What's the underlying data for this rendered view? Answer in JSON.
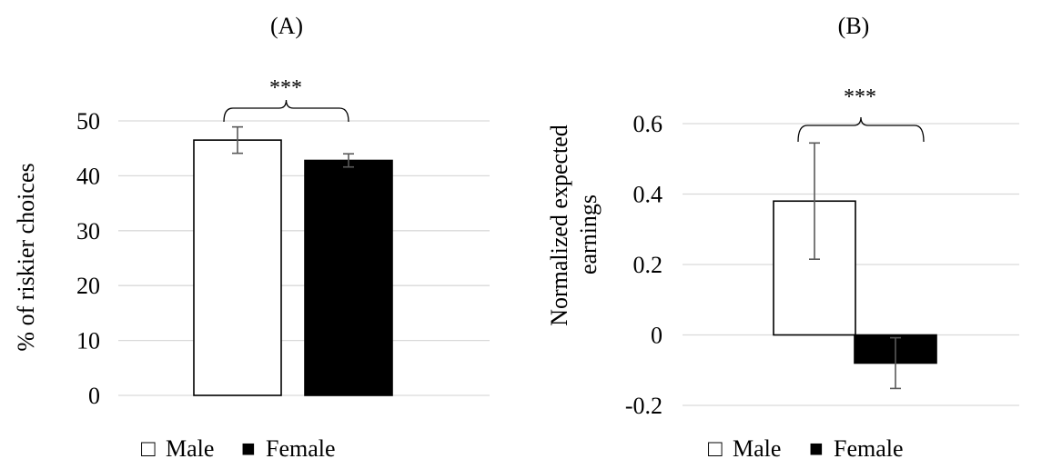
{
  "chart_data": [
    {
      "type": "bar",
      "title": "(A)",
      "ylabel": "% of riskier choices",
      "categories": [
        "Male",
        "Female"
      ],
      "values": [
        46.5,
        42.8
      ],
      "error": [
        2.4,
        1.2
      ],
      "bar_colors": [
        "#ffffff",
        "#000000"
      ],
      "ylim": [
        0,
        50
      ],
      "yticks": [
        0,
        10,
        20,
        30,
        40,
        50
      ],
      "ytick_labels": [
        "0",
        "10",
        "20",
        "30",
        "40",
        "50"
      ],
      "grid": true,
      "significance": "***",
      "legend": [
        {
          "marker": "□",
          "label": "Male"
        },
        {
          "marker": "■",
          "label": "Female"
        }
      ],
      "legend_position": "bottom"
    },
    {
      "type": "bar",
      "title": "(B)",
      "ylabel_lines": [
        "Normalized expected",
        "earnings"
      ],
      "categories": [
        "Male",
        "Female"
      ],
      "values": [
        0.38,
        -0.08
      ],
      "error": [
        0.165,
        0.072
      ],
      "bar_colors": [
        "#ffffff",
        "#000000"
      ],
      "ylim": [
        -0.2,
        0.6
      ],
      "yticks": [
        -0.2,
        0,
        0.2,
        0.4,
        0.6
      ],
      "ytick_labels": [
        "-0.2",
        "0",
        "0.2",
        "0.4",
        "0.6"
      ],
      "grid": true,
      "significance": "***",
      "legend": [
        {
          "marker": "□",
          "label": "Male"
        },
        {
          "marker": "■",
          "label": "Female"
        }
      ],
      "legend_position": "bottom"
    }
  ]
}
